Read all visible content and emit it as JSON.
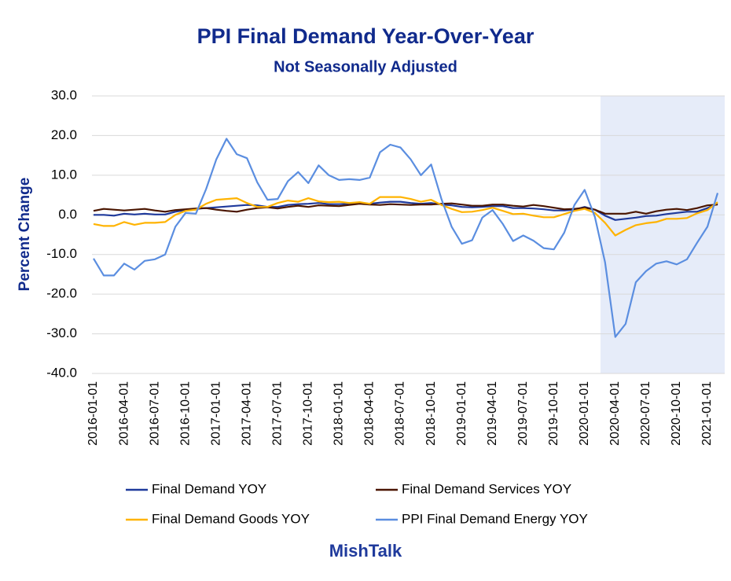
{
  "chart_data": {
    "type": "line",
    "title": "PPI Final Demand Year-Over-Year",
    "subtitle": "Not Seasonally Adjusted",
    "y_label": "Percent Change",
    "footer": "MishTalk",
    "categories": [
      "2016-01-01",
      null,
      null,
      "2016-04-01",
      null,
      null,
      "2016-07-01",
      null,
      null,
      "2016-10-01",
      null,
      null,
      "2017-01-01",
      null,
      null,
      "2017-04-01",
      null,
      null,
      "2017-07-01",
      null,
      null,
      "2017-10-01",
      null,
      null,
      "2018-01-01",
      null,
      null,
      "2018-04-01",
      null,
      null,
      "2018-07-01",
      null,
      null,
      "2018-10-01",
      null,
      null,
      "2019-01-01",
      null,
      null,
      "2019-04-01",
      null,
      null,
      "2019-07-01",
      null,
      null,
      "2019-10-01",
      null,
      null,
      "2020-01-01",
      null,
      null,
      "2020-04-01",
      null,
      null,
      "2020-07-01",
      null,
      null,
      "2020-10-01",
      null,
      null,
      "2021-01-01",
      null
    ],
    "series": [
      {
        "name": "Final Demand YOY",
        "color": "#1f3a9c",
        "values": [
          0,
          0,
          -0.2,
          0.3,
          0.1,
          0.3,
          0.1,
          0.1,
          0.8,
          1.2,
          1.5,
          1.7,
          1.9,
          2.1,
          2.3,
          2.5,
          2.4,
          2,
          2,
          2.5,
          2.7,
          2.8,
          3,
          2.7,
          2.7,
          2.8,
          3,
          2.8,
          3.1,
          3.3,
          3.3,
          3,
          2.8,
          3,
          2.6,
          2.4,
          2,
          1.9,
          2,
          2.2,
          2.2,
          1.7,
          1.7,
          1.6,
          1.4,
          1.1,
          1.1,
          1.3,
          2,
          1.3,
          -0.2,
          -1.3,
          -1,
          -0.7,
          -0.3,
          -0.2,
          0.2,
          0.5,
          0.8,
          0.8,
          1.7,
          2.8
        ]
      },
      {
        "name": "Final Demand Services YOY",
        "color": "#4a1500",
        "values": [
          1,
          1.5,
          1.3,
          1.1,
          1.3,
          1.5,
          1.1,
          0.8,
          1.2,
          1.4,
          1.6,
          1.7,
          1.3,
          1,
          0.8,
          1.3,
          1.7,
          1.9,
          1.6,
          2,
          2.3,
          2,
          2.4,
          2.3,
          2.2,
          2.5,
          2.8,
          2.6,
          2.5,
          2.7,
          2.6,
          2.5,
          2.6,
          2.6,
          2.8,
          2.9,
          2.6,
          2.3,
          2.3,
          2.6,
          2.6,
          2.3,
          2.1,
          2.5,
          2.2,
          1.8,
          1.4,
          1.5,
          1.8,
          1.3,
          0.3,
          0.3,
          0.3,
          0.8,
          0.3,
          0.9,
          1.3,
          1.5,
          1.2,
          1.7,
          2.4,
          2.6
        ]
      },
      {
        "name": "Final Demand Goods YOY",
        "color": "#ffb300",
        "values": [
          -2.3,
          -2.8,
          -2.8,
          -1.8,
          -2.5,
          -2,
          -2,
          -1.8,
          0,
          1,
          1.3,
          2.8,
          3.8,
          4,
          4.2,
          3,
          2,
          2,
          3,
          3.6,
          3.3,
          4.2,
          3.4,
          3.2,
          3.3,
          3,
          3.2,
          2.8,
          4.5,
          4.5,
          4.5,
          4,
          3.3,
          3.8,
          2.5,
          1.5,
          0.7,
          0.8,
          1.2,
          1.8,
          1,
          0.2,
          0.3,
          -0.2,
          -0.6,
          -0.6,
          0.2,
          1,
          1.5,
          0.5,
          -2,
          -5.2,
          -3.8,
          -2.6,
          -2.1,
          -1.8,
          -1,
          -1,
          -0.8,
          0.4,
          1.2,
          3.2
        ]
      },
      {
        "name": "PPI Final Demand Energy YOY",
        "color": "#5b8ee0",
        "values": [
          -11,
          -15.3,
          -15.3,
          -12.3,
          -13.8,
          -11.6,
          -11.2,
          -10,
          -3,
          0.5,
          0.3,
          6.5,
          14,
          19.2,
          15.3,
          14.3,
          8.2,
          3.8,
          4,
          8.5,
          10.8,
          8,
          12.5,
          10,
          8.8,
          9,
          8.8,
          9.4,
          15.8,
          17.7,
          17,
          14,
          10,
          12.7,
          4,
          -3,
          -7.3,
          -6.4,
          -0.7,
          1.2,
          -2.3,
          -6.6,
          -5.2,
          -6.5,
          -8.4,
          -8.7,
          -4.5,
          2.5,
          6.3,
          -0.5,
          -12,
          -30.8,
          -27.5,
          -17,
          -14.2,
          -12.3,
          -11.7,
          -12.5,
          -11.2,
          -7,
          -3,
          5.5
        ]
      }
    ],
    "ylim": [
      -40,
      30
    ],
    "yticks": [
      {
        "value": -40,
        "label": "-40.0"
      },
      {
        "value": -30,
        "label": "-30.0"
      },
      {
        "value": -20,
        "label": "-20.0"
      },
      {
        "value": -10,
        "label": "-10.0"
      },
      {
        "value": 0,
        "label": "0.0"
      },
      {
        "value": 10,
        "label": "10.0"
      },
      {
        "value": 20,
        "label": "20.0"
      },
      {
        "value": 30,
        "label": "30.0"
      }
    ],
    "grid": true
  }
}
